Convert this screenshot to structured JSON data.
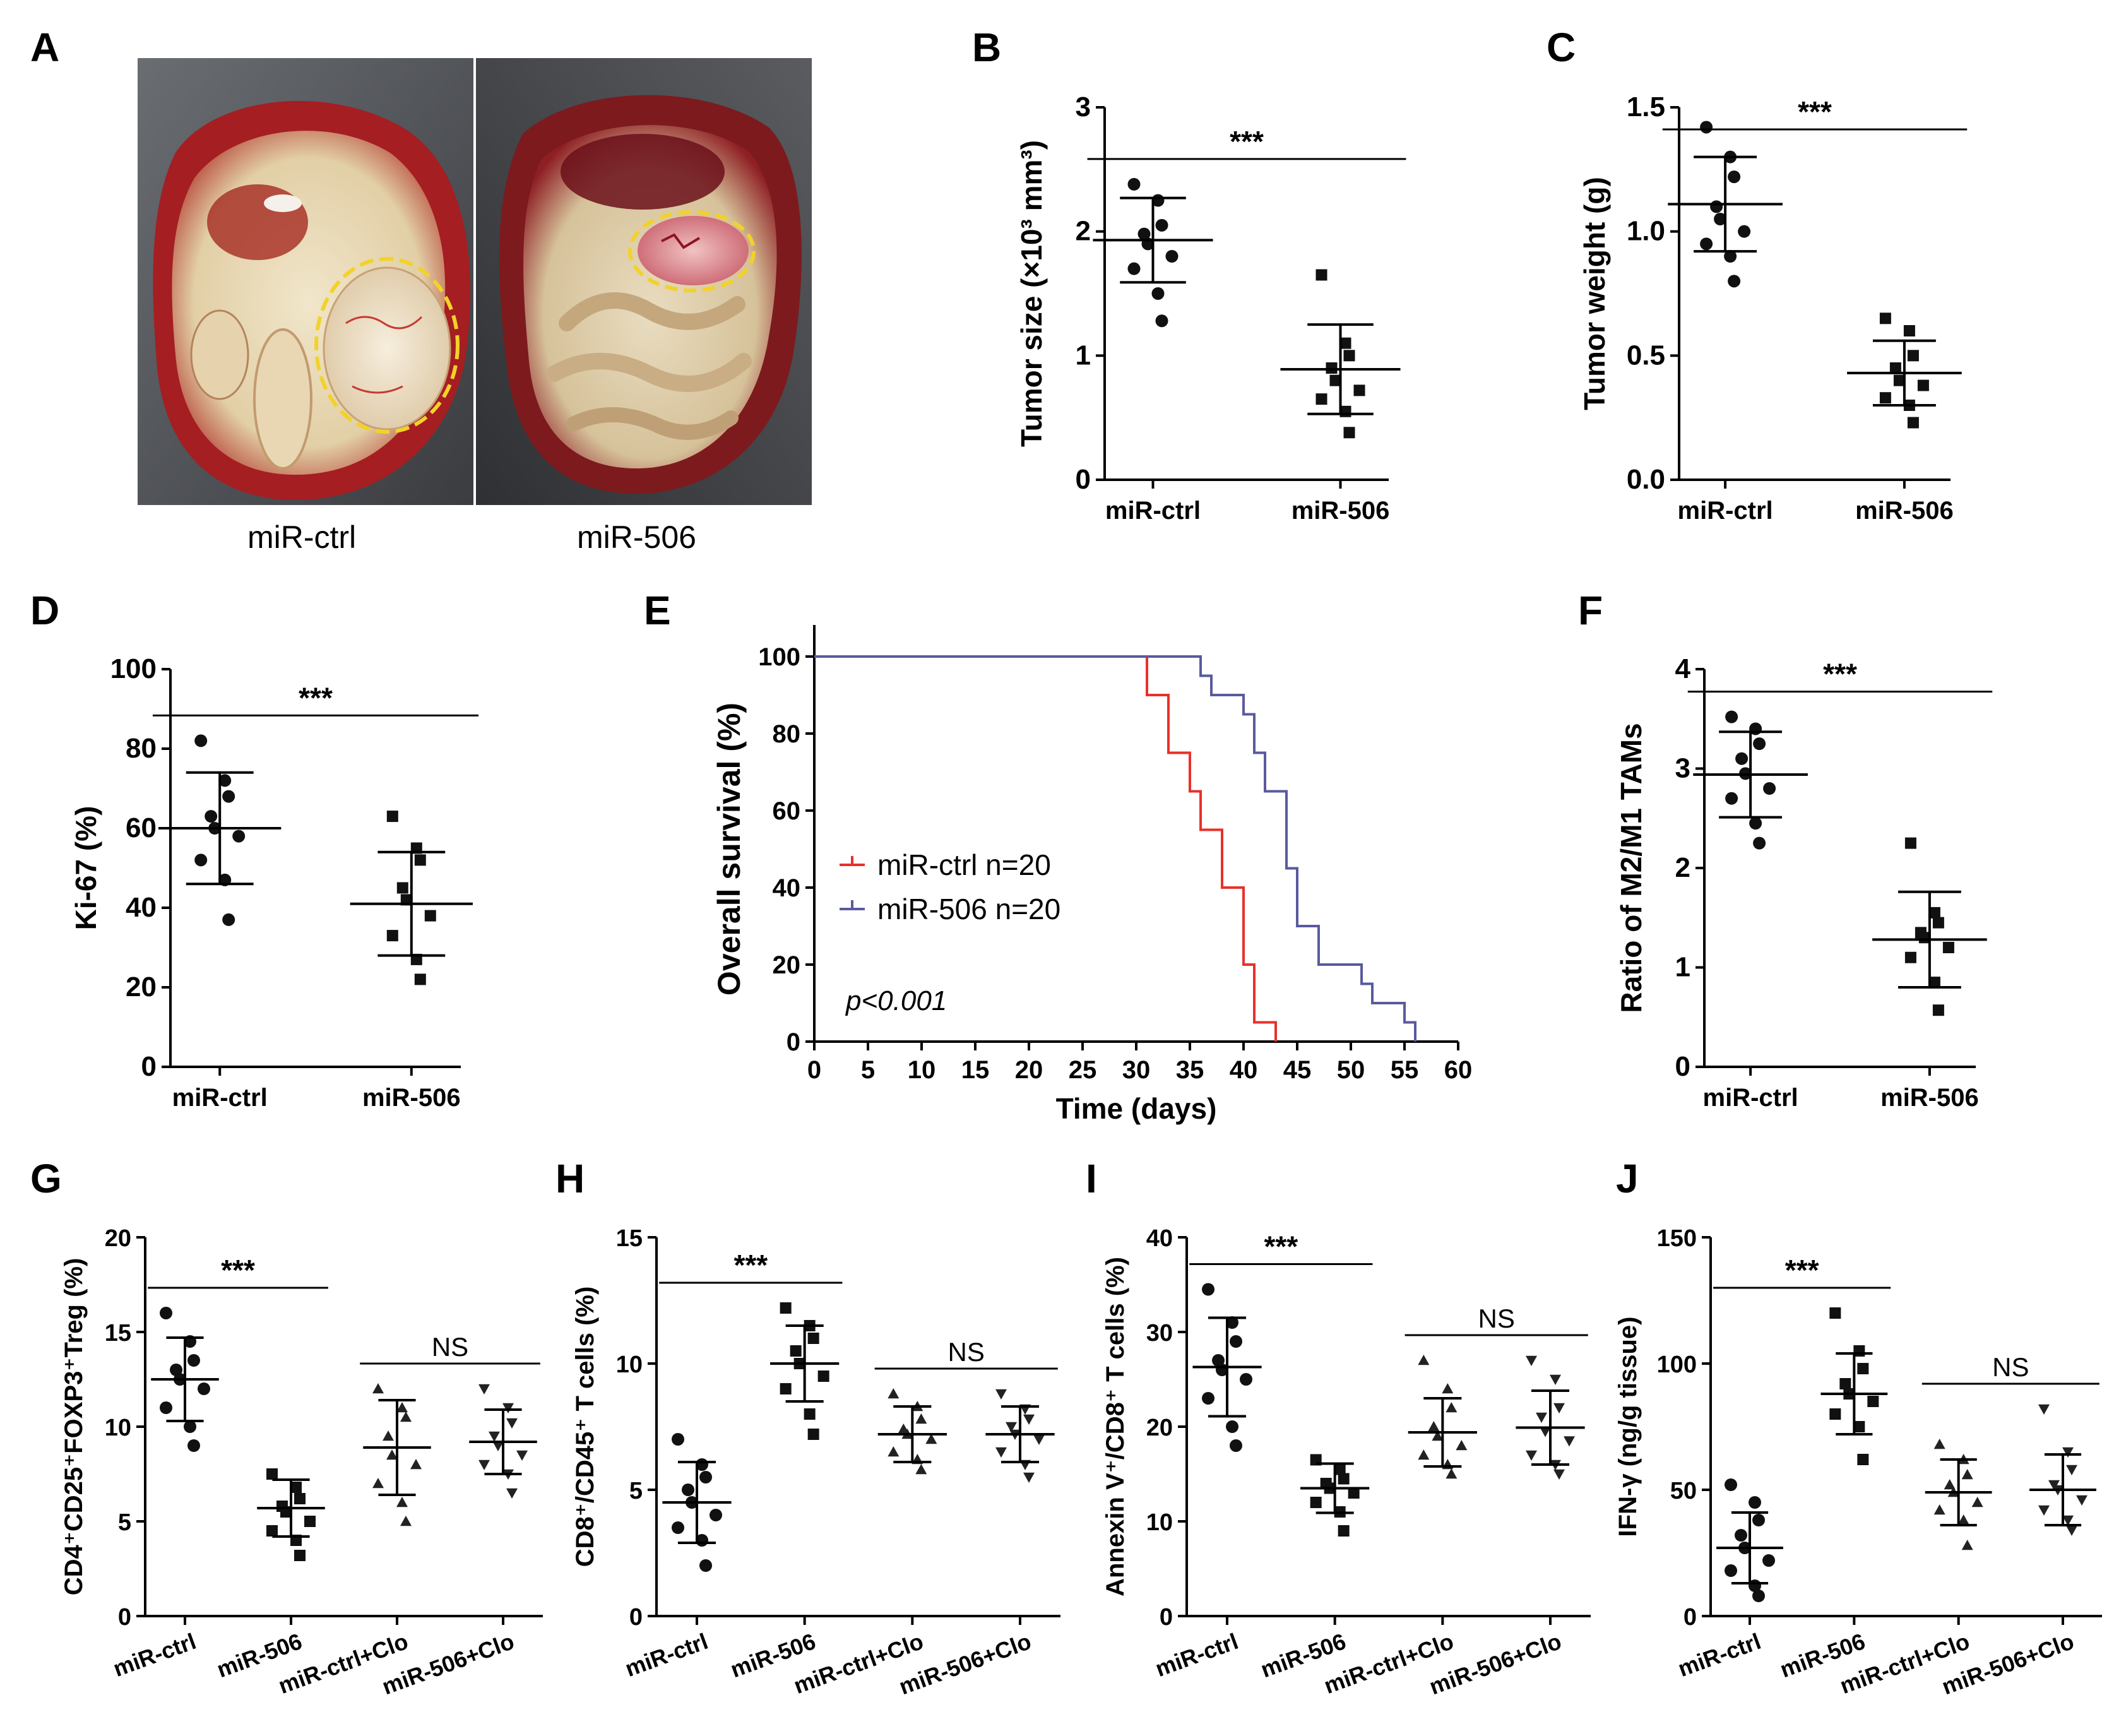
{
  "panels": {
    "A": {
      "label": "A",
      "captions": [
        "miR-ctrl",
        "miR-506"
      ],
      "photo_colors": {
        "fur": "#4a4d52",
        "tissue": "#e6d7b6",
        "blood": "#a51e22",
        "circle": "#f2d22a"
      }
    },
    "B": {
      "label": "B"
    },
    "C": {
      "label": "C"
    },
    "D": {
      "label": "D"
    },
    "E": {
      "label": "E"
    },
    "F": {
      "label": "F"
    },
    "G": {
      "label": "G"
    },
    "H": {
      "label": "H"
    },
    "I": {
      "label": "I"
    },
    "J": {
      "label": "J"
    }
  },
  "chart_data": [
    {
      "id": "B",
      "type": "scatter",
      "ylabel": "Tumor size (×10³ mm³)",
      "ylim": [
        0,
        3
      ],
      "yticks": [
        0,
        1,
        2,
        3
      ],
      "categories": [
        "miR-ctrl",
        "miR-506"
      ],
      "xlabel_style": "bold",
      "groups": [
        {
          "marker": "circle",
          "mean": 1.93,
          "sd": 0.34,
          "points": [
            2.38,
            2.25,
            2.05,
            1.98,
            1.9,
            1.8,
            1.7,
            1.5,
            1.28
          ]
        },
        {
          "marker": "square",
          "mean": 0.89,
          "sd": 0.36,
          "points": [
            1.65,
            1.1,
            1.0,
            0.9,
            0.8,
            0.72,
            0.65,
            0.55,
            0.38
          ]
        }
      ],
      "significance": [
        {
          "from": 0,
          "to": 1,
          "label": "***"
        }
      ]
    },
    {
      "id": "C",
      "type": "scatter",
      "ylabel": "Tumor weight (g)",
      "ylim": [
        0,
        1.5
      ],
      "yticks": [
        0.0,
        0.5,
        1.0,
        1.5
      ],
      "ytick_labels": [
        "0.0",
        "0.5",
        "1.0",
        "1.5"
      ],
      "categories": [
        "miR-ctrl",
        "miR-506"
      ],
      "xlabel_style": "bold",
      "groups": [
        {
          "marker": "circle",
          "mean": 1.11,
          "sd": 0.19,
          "points": [
            1.42,
            1.3,
            1.22,
            1.1,
            1.05,
            1.0,
            0.95,
            0.9,
            0.8
          ]
        },
        {
          "marker": "square",
          "mean": 0.43,
          "sd": 0.13,
          "points": [
            0.65,
            0.6,
            0.5,
            0.45,
            0.4,
            0.38,
            0.33,
            0.3,
            0.23
          ]
        }
      ],
      "significance": [
        {
          "from": 0,
          "to": 1,
          "label": "***"
        }
      ]
    },
    {
      "id": "D",
      "type": "scatter",
      "ylabel": "Ki-67 (%)",
      "ylim": [
        0,
        100
      ],
      "yticks": [
        0,
        20,
        40,
        60,
        80,
        100
      ],
      "categories": [
        "miR-ctrl",
        "miR-506"
      ],
      "xlabel_style": "bold",
      "groups": [
        {
          "marker": "circle",
          "mean": 60,
          "sd": 14,
          "points": [
            82,
            72,
            68,
            63,
            60,
            58,
            52,
            47,
            37
          ]
        },
        {
          "marker": "square",
          "mean": 41,
          "sd": 13,
          "points": [
            63,
            55,
            52,
            45,
            42,
            38,
            33,
            27,
            22
          ]
        }
      ],
      "significance": [
        {
          "from": 0,
          "to": 1,
          "label": "***"
        }
      ]
    },
    {
      "id": "E",
      "type": "line",
      "xlabel": "Time (days)",
      "ylabel": "Overall survival (%)",
      "xlim": [
        0,
        60
      ],
      "ylim": [
        0,
        100
      ],
      "xticks": [
        0,
        5,
        10,
        15,
        20,
        25,
        30,
        35,
        40,
        45,
        50,
        55,
        60
      ],
      "yticks": [
        0,
        20,
        40,
        60,
        80,
        100
      ],
      "annotation": "p<0.001",
      "series": [
        {
          "name": "miR-ctrl n=20",
          "color": "#e8312a",
          "steps": [
            [
              0,
              100
            ],
            [
              30,
              100
            ],
            [
              31,
              90
            ],
            [
              33,
              75
            ],
            [
              35,
              65
            ],
            [
              36,
              55
            ],
            [
              38,
              40
            ],
            [
              40,
              20
            ],
            [
              41,
              5
            ],
            [
              43,
              0
            ]
          ]
        },
        {
          "name": "miR-506 n=20",
          "color": "#5a5a9e",
          "steps": [
            [
              0,
              100
            ],
            [
              35,
              100
            ],
            [
              36,
              95
            ],
            [
              37,
              90
            ],
            [
              40,
              85
            ],
            [
              41,
              75
            ],
            [
              42,
              65
            ],
            [
              44,
              45
            ],
            [
              45,
              30
            ],
            [
              47,
              20
            ],
            [
              51,
              15
            ],
            [
              52,
              10
            ],
            [
              55,
              5
            ],
            [
              56,
              0
            ]
          ]
        }
      ]
    },
    {
      "id": "F",
      "type": "scatter",
      "ylabel": "Ratio of M2/M1 TAMs",
      "ylim": [
        0,
        4
      ],
      "yticks": [
        0,
        1,
        2,
        3,
        4
      ],
      "categories": [
        "miR-ctrl",
        "miR-506"
      ],
      "xlabel_style": "bold",
      "groups": [
        {
          "marker": "circle",
          "mean": 2.94,
          "sd": 0.43,
          "points": [
            3.52,
            3.4,
            3.25,
            3.1,
            2.95,
            2.8,
            2.7,
            2.45,
            2.25
          ]
        },
        {
          "marker": "square",
          "mean": 1.28,
          "sd": 0.48,
          "points": [
            2.25,
            1.55,
            1.45,
            1.35,
            1.3,
            1.2,
            1.1,
            0.85,
            0.57
          ]
        }
      ],
      "significance": [
        {
          "from": 0,
          "to": 1,
          "label": "***"
        }
      ]
    },
    {
      "id": "G",
      "type": "scatter",
      "ylabel": "CD4⁺CD25⁺FOXP3⁺Treg (%)",
      "ylim": [
        0,
        20
      ],
      "yticks": [
        0,
        5,
        10,
        15,
        20
      ],
      "categories": [
        "miR-ctrl",
        "miR-506",
        "miR-ctrl+Clo",
        "miR-506+Clo"
      ],
      "xlabel_style": "rotated",
      "groups": [
        {
          "marker": "circle",
          "mean": 12.5,
          "sd": 2.2,
          "points": [
            16.0,
            14.5,
            13.5,
            13.0,
            12.5,
            12.0,
            11.0,
            10.0,
            9.0
          ]
        },
        {
          "marker": "square",
          "mean": 5.7,
          "sd": 1.5,
          "points": [
            7.5,
            6.8,
            6.2,
            5.8,
            5.5,
            5.0,
            4.5,
            4.0,
            3.2
          ]
        },
        {
          "marker": "triangle",
          "mean": 8.9,
          "sd": 2.5,
          "points": [
            12.0,
            11.0,
            10.5,
            9.5,
            8.5,
            8.0,
            7.0,
            6.0,
            5.0
          ]
        },
        {
          "marker": "triangle-down",
          "mean": 9.2,
          "sd": 1.7,
          "points": [
            12.0,
            11.0,
            10.2,
            9.5,
            9.0,
            8.5,
            8.0,
            7.5,
            6.5
          ]
        }
      ],
      "significance": [
        {
          "from": 0,
          "to": 1,
          "label": "***"
        },
        {
          "from": 2,
          "to": 3,
          "label": "NS"
        }
      ]
    },
    {
      "id": "H",
      "type": "scatter",
      "ylabel": "CD8⁺/CD45⁺ T cells (%)",
      "ylim": [
        0,
        15
      ],
      "yticks": [
        0,
        5,
        10,
        15
      ],
      "categories": [
        "miR-ctrl",
        "miR-506",
        "miR-ctrl+Clo",
        "miR-506+Clo"
      ],
      "xlabel_style": "rotated",
      "groups": [
        {
          "marker": "circle",
          "mean": 4.5,
          "sd": 1.6,
          "points": [
            7.0,
            6.0,
            5.5,
            5.0,
            4.5,
            4.0,
            3.5,
            3.0,
            2.0
          ]
        },
        {
          "marker": "square",
          "mean": 10.0,
          "sd": 1.5,
          "points": [
            12.2,
            11.5,
            11.0,
            10.5,
            10.0,
            9.5,
            9.0,
            8.0,
            7.2
          ]
        },
        {
          "marker": "triangle",
          "mean": 7.2,
          "sd": 1.1,
          "points": [
            8.8,
            8.3,
            7.8,
            7.4,
            7.2,
            7.0,
            6.5,
            6.2,
            5.8
          ]
        },
        {
          "marker": "triangle-down",
          "mean": 7.2,
          "sd": 1.1,
          "points": [
            8.8,
            8.2,
            7.8,
            7.5,
            7.2,
            7.0,
            6.5,
            6.0,
            5.5
          ]
        }
      ],
      "significance": [
        {
          "from": 0,
          "to": 1,
          "label": "***"
        },
        {
          "from": 2,
          "to": 3,
          "label": "NS"
        }
      ]
    },
    {
      "id": "I",
      "type": "scatter",
      "ylabel": "Annexin V⁺/CD8⁺ T cells (%)",
      "ylim": [
        0,
        40
      ],
      "yticks": [
        0,
        10,
        20,
        30,
        40
      ],
      "categories": [
        "miR-ctrl",
        "miR-506",
        "miR-ctrl+Clo",
        "miR-506+Clo"
      ],
      "xlabel_style": "rotated",
      "groups": [
        {
          "marker": "circle",
          "mean": 26.3,
          "sd": 5.2,
          "points": [
            34.5,
            31.0,
            29.0,
            27.0,
            26.0,
            25.0,
            23.0,
            20.0,
            18.0
          ]
        },
        {
          "marker": "square",
          "mean": 13.5,
          "sd": 2.6,
          "points": [
            16.5,
            15.5,
            14.5,
            14.0,
            13.5,
            13.0,
            12.0,
            11.0,
            9.0
          ]
        },
        {
          "marker": "triangle",
          "mean": 19.4,
          "sd": 3.6,
          "points": [
            27.0,
            24.0,
            22.0,
            20.0,
            19.0,
            18.0,
            17.0,
            16.0,
            15.0
          ]
        },
        {
          "marker": "triangle-down",
          "mean": 19.9,
          "sd": 3.9,
          "points": [
            27.0,
            25.0,
            22.0,
            21.0,
            19.5,
            18.5,
            17.0,
            16.0,
            15.0
          ]
        }
      ],
      "significance": [
        {
          "from": 0,
          "to": 1,
          "label": "***"
        },
        {
          "from": 2,
          "to": 3,
          "label": "NS"
        }
      ]
    },
    {
      "id": "J",
      "type": "scatter",
      "ylabel": "IFN-γ (ng/g tissue)",
      "ylim": [
        0,
        150
      ],
      "yticks": [
        0,
        50,
        100,
        150
      ],
      "categories": [
        "miR-ctrl",
        "miR-506",
        "miR-ctrl+Clo",
        "miR-506+Clo"
      ],
      "xlabel_style": "rotated",
      "groups": [
        {
          "marker": "circle",
          "mean": 27,
          "sd": 14,
          "points": [
            52,
            45,
            38,
            32,
            27,
            22,
            18,
            12,
            8
          ]
        },
        {
          "marker": "square",
          "mean": 88,
          "sd": 16,
          "points": [
            120,
            105,
            98,
            92,
            88,
            85,
            80,
            75,
            62
          ]
        },
        {
          "marker": "triangle",
          "mean": 49,
          "sd": 13,
          "points": [
            68,
            62,
            56,
            52,
            49,
            45,
            42,
            38,
            28
          ]
        },
        {
          "marker": "triangle-down",
          "mean": 50,
          "sd": 14,
          "points": [
            82,
            65,
            58,
            52,
            50,
            46,
            42,
            38,
            34
          ]
        }
      ],
      "significance": [
        {
          "from": 0,
          "to": 1,
          "label": "***"
        },
        {
          "from": 2,
          "to": 3,
          "label": "NS"
        }
      ]
    }
  ]
}
